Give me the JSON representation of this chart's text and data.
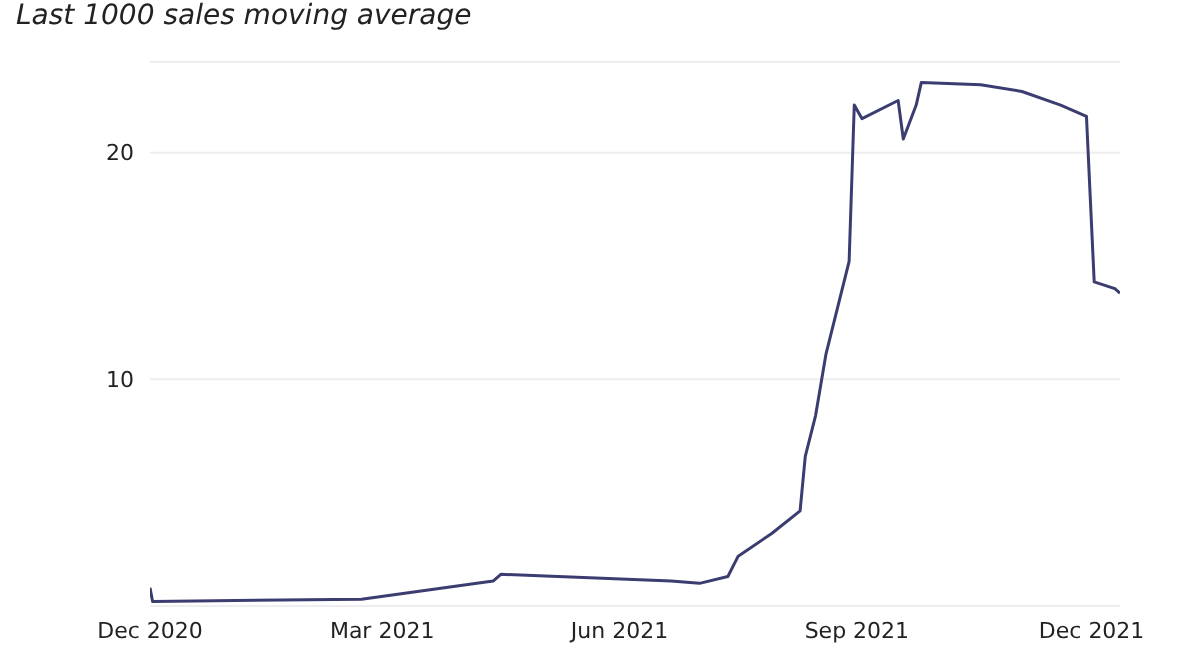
{
  "chart_data": {
    "type": "line",
    "title": "Last 1000 sales moving average",
    "x": [
      "2020-12-01",
      "2020-12-02",
      "2021-02-21",
      "2021-04-13",
      "2021-04-16",
      "2021-06-21",
      "2021-07-02",
      "2021-07-13",
      "2021-07-17",
      "2021-07-30",
      "2021-08-10",
      "2021-08-12",
      "2021-08-16",
      "2021-08-20",
      "2021-08-29",
      "2021-08-31",
      "2021-09-03",
      "2021-09-17",
      "2021-09-19",
      "2021-09-24",
      "2021-09-26",
      "2021-10-19",
      "2021-11-04",
      "2021-11-19",
      "2021-11-29",
      "2021-12-02",
      "2021-12-10",
      "2021-12-12"
    ],
    "series": [
      {
        "color": "#3b3d70",
        "values": [
          0.8,
          0.2,
          0.3,
          1.1,
          1.4,
          1.1,
          1.0,
          1.3,
          2.2,
          3.2,
          4.2,
          6.6,
          8.4,
          11.1,
          15.2,
          22.1,
          21.5,
          22.3,
          20.6,
          22.1,
          23.1,
          23.0,
          22.7,
          22.1,
          21.6,
          14.3,
          14.0,
          13.8
        ]
      }
    ],
    "xlim": [
      "2020-12-01",
      "2021-12-12"
    ],
    "xticks": [
      {
        "value": "2020-12-01",
        "label": "Dec 2020"
      },
      {
        "value": "2021-03-01",
        "label": "Mar 2021"
      },
      {
        "value": "2021-06-01",
        "label": "Jun 2021"
      },
      {
        "value": "2021-09-01",
        "label": "Sep 2021"
      },
      {
        "value": "2021-12-01",
        "label": "Dec 2021"
      }
    ],
    "ylim": [
      0,
      24
    ],
    "yticks": [
      10,
      20
    ],
    "grid": "y",
    "marker": "none",
    "line_style": "solid",
    "legend": false
  }
}
